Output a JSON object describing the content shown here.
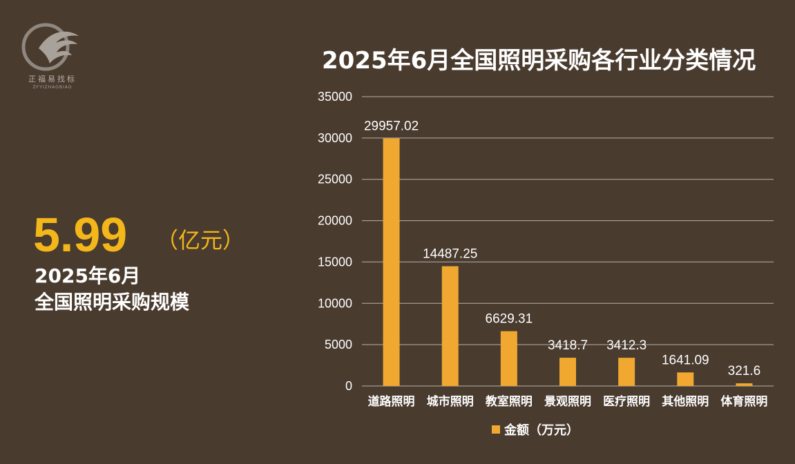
{
  "brand": {
    "logo_text": "正福易找标",
    "logo_sub": "ZFYIZHAOBIAO"
  },
  "summary": {
    "value": "5.99",
    "unit": "（亿元）",
    "line1": "2025年6月",
    "line2": "全国照明采购规模"
  },
  "colors": {
    "background": "#4a3b2f",
    "accent": "#f3b71a",
    "bar": "#f0a830",
    "grid": "#b9b1a8",
    "text": "#ffffff"
  },
  "chart_data": {
    "type": "bar",
    "title": "2025年6月全国照明采购各行业分类情况",
    "categories": [
      "道路照明",
      "城市照明",
      "教室照明",
      "景观照明",
      "医疗照明",
      "其他照明",
      "体育照明"
    ],
    "series": [
      {
        "name": "金额（万元）",
        "values": [
          29957.02,
          14487.25,
          6629.31,
          3418.7,
          3412.3,
          1641.09,
          321.6
        ],
        "labels": [
          "29957.02",
          "14487.25",
          "6629.31",
          "3418.7",
          "3412.3",
          "1641.09",
          "321.6"
        ]
      }
    ],
    "ylim": [
      0,
      35000
    ],
    "yticks": [
      0,
      5000,
      10000,
      15000,
      20000,
      25000,
      30000,
      35000
    ],
    "grid": true,
    "legend": "bottom-center"
  }
}
